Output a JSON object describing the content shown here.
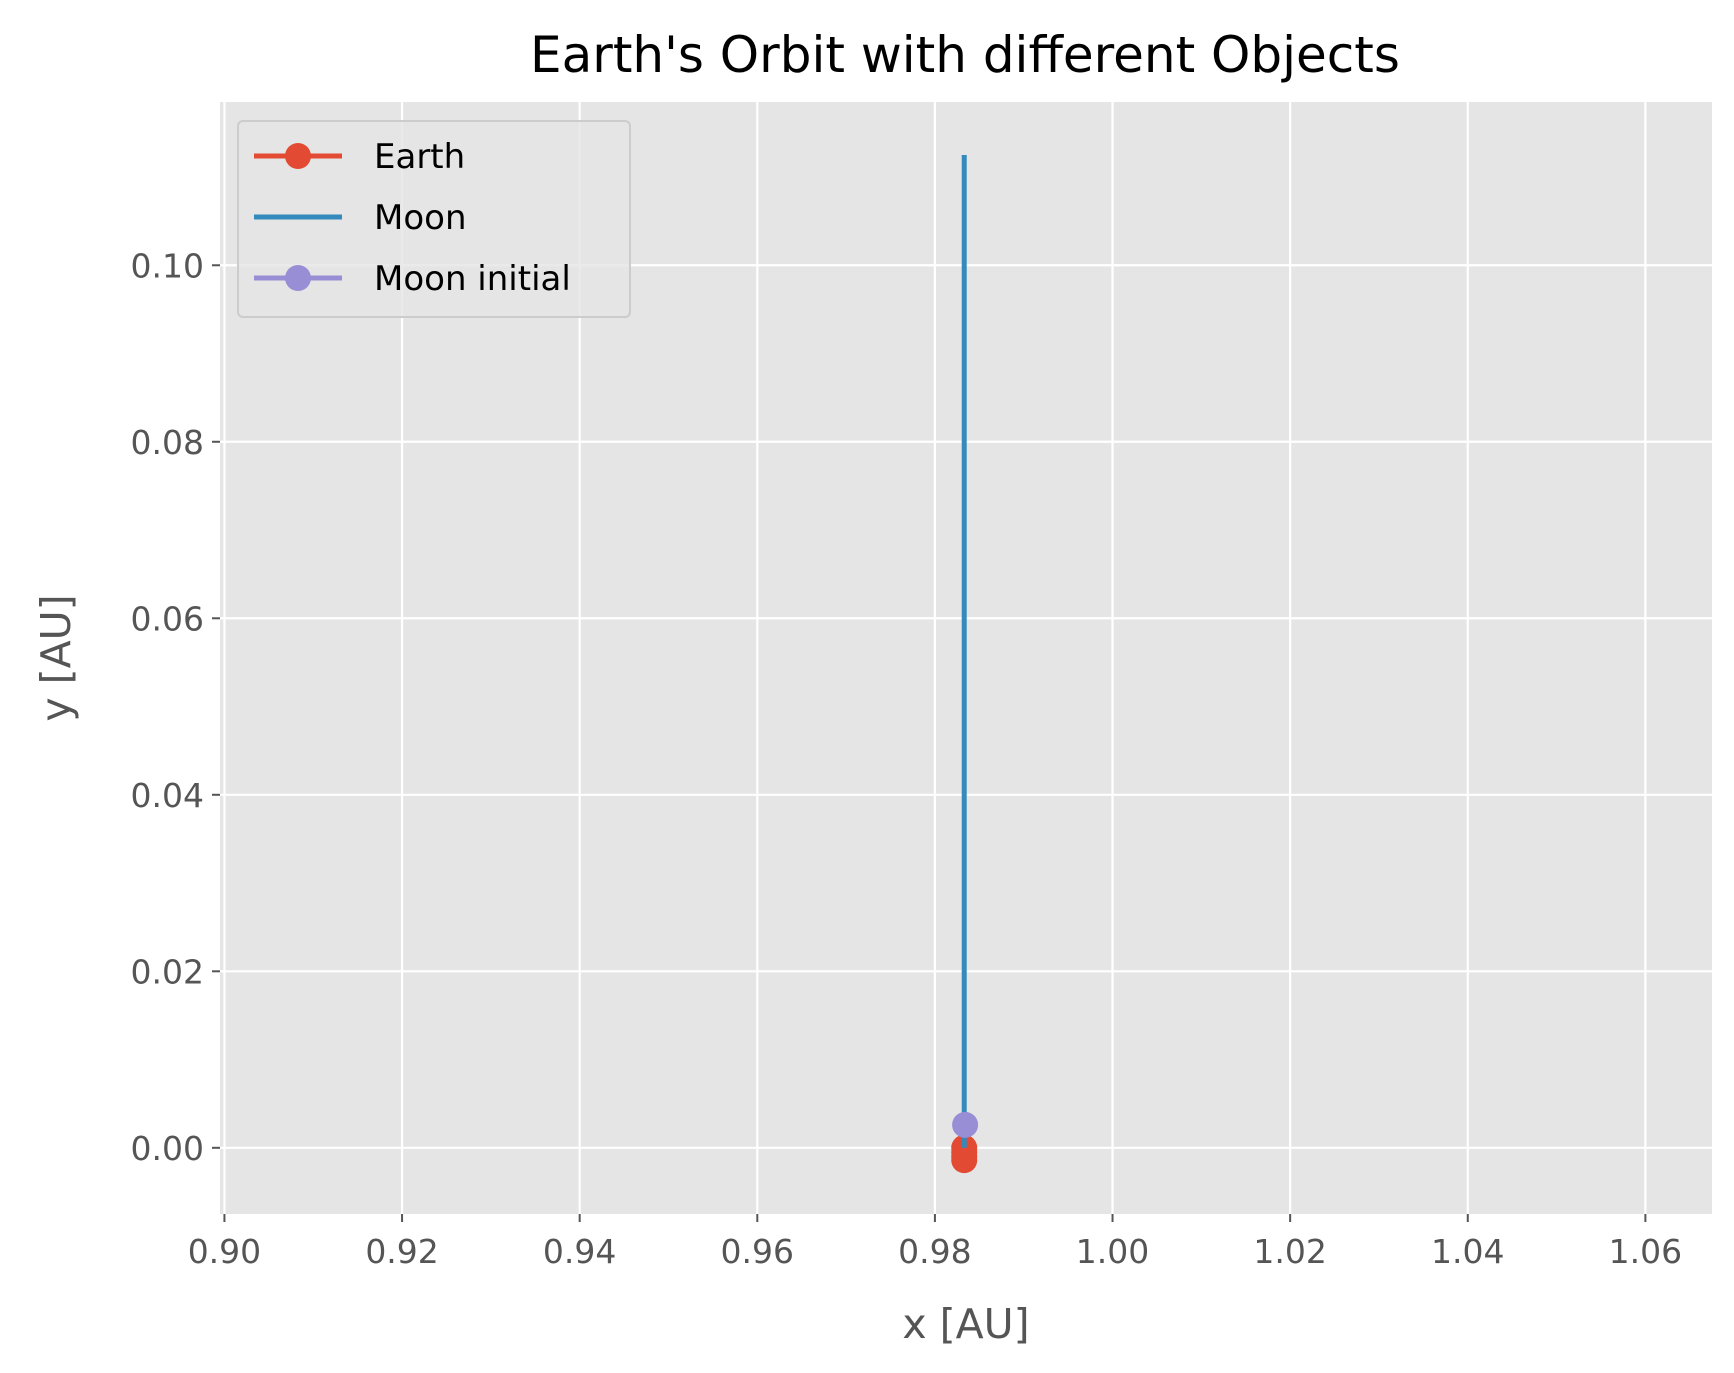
{
  "chart_data": {
    "type": "line",
    "title": "Earth's Orbit with different Objects",
    "xlabel": "x [AU]",
    "ylabel": "y [AU]",
    "xlim": [
      0.8995,
      1.0675
    ],
    "ylim": [
      -0.0075,
      0.1185
    ],
    "xticks": [
      0.9,
      0.92,
      0.94,
      0.96,
      0.98,
      1.0,
      1.02,
      1.04,
      1.06
    ],
    "xtick_labels": [
      "0.90",
      "0.92",
      "0.94",
      "0.96",
      "0.98",
      "1.00",
      "1.02",
      "1.04",
      "1.06"
    ],
    "yticks": [
      0.0,
      0.02,
      0.04,
      0.06,
      0.08,
      0.1
    ],
    "ytick_labels": [
      "0.00",
      "0.02",
      "0.04",
      "0.06",
      "0.08",
      "0.10"
    ],
    "grid": true,
    "legend_position": "top-left",
    "background": "#e5e5e5",
    "series": [
      {
        "name": "Earth",
        "color": "#e24a33",
        "marker": "circle",
        "line": true,
        "x": [
          0.9833,
          0.9833,
          0.9833,
          0.9833
        ],
        "y": [
          0.0,
          -0.0005,
          -0.001,
          -0.0014
        ]
      },
      {
        "name": "Moon",
        "color": "#348abd",
        "marker": "none",
        "line": true,
        "x": [
          0.9833,
          0.9833,
          0.9833
        ],
        "y": [
          0.0,
          0.1125,
          0.0
        ]
      },
      {
        "name": "Moon initial",
        "color": "#988ed5",
        "marker": "circle",
        "line": true,
        "x": [
          0.9834
        ],
        "y": [
          0.0026
        ]
      }
    ]
  }
}
